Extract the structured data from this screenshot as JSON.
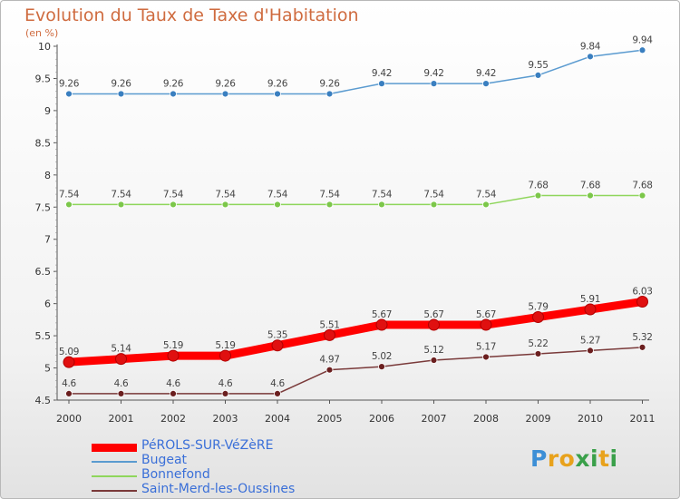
{
  "title": "Evolution du Taux de Taxe d'Habitation",
  "unit_label": "(en %)",
  "logo_text": "Proxiti",
  "chart_data": {
    "type": "line",
    "title": "Evolution du Taux de Taxe d'Habitation",
    "ylabel": "(en %)",
    "xlabel": "",
    "categories": [
      "2000",
      "2001",
      "2002",
      "2003",
      "2004",
      "2005",
      "2006",
      "2007",
      "2008",
      "2009",
      "2010",
      "2011"
    ],
    "ylim": [
      4.5,
      10
    ],
    "yticks": [
      4.5,
      5,
      5.5,
      6,
      6.5,
      7,
      7.5,
      8,
      8.5,
      9,
      9.5,
      10
    ],
    "ytick_labels": [
      "4.5",
      "5",
      "5.5",
      "6",
      "6.5",
      "7",
      "7.5",
      "8",
      "8.5",
      "9",
      "9.5",
      "10"
    ],
    "legend_position": "bottom-left",
    "series": [
      {
        "name": "PéROLS-SUR-VéZèRE",
        "color": "#ff0000",
        "marker": "#e01010",
        "width": 9,
        "values": [
          5.09,
          5.14,
          5.19,
          5.19,
          5.35,
          5.51,
          5.67,
          5.67,
          5.67,
          5.79,
          5.91,
          6.03
        ],
        "labels": [
          "5.09",
          "5.14",
          "5.19",
          "5.19",
          "5.35",
          "5.51",
          "5.67",
          "5.67",
          "5.67",
          "5.79",
          "5.91",
          "6.03"
        ]
      },
      {
        "name": "Bugeat",
        "color": "#5b9bd0",
        "marker": "#3a7fc0",
        "width": 1.5,
        "values": [
          9.26,
          9.26,
          9.26,
          9.26,
          9.26,
          9.26,
          9.42,
          9.42,
          9.42,
          9.55,
          9.84,
          9.94
        ],
        "labels": [
          "9.26",
          "9.26",
          "9.26",
          "9.26",
          "9.26",
          "9.26",
          "9.42",
          "9.42",
          "9.42",
          "9.55",
          "9.84",
          "9.94"
        ]
      },
      {
        "name": "Bonnefond",
        "color": "#8fd65c",
        "marker": "#7cc74a",
        "width": 1.5,
        "values": [
          7.54,
          7.54,
          7.54,
          7.54,
          7.54,
          7.54,
          7.54,
          7.54,
          7.54,
          7.68,
          7.68,
          7.68
        ],
        "labels": [
          "7.54",
          "7.54",
          "7.54",
          "7.54",
          "7.54",
          "7.54",
          "7.54",
          "7.54",
          "7.54",
          "7.68",
          "7.68",
          "7.68"
        ]
      },
      {
        "name": "Saint-Merd-les-Oussines",
        "color": "#7a3a3a",
        "marker": "#6b1f1f",
        "width": 1.5,
        "values": [
          4.6,
          4.6,
          4.6,
          4.6,
          4.6,
          4.97,
          5.02,
          5.12,
          5.17,
          5.22,
          5.27,
          5.32
        ],
        "labels": [
          "4.6",
          "4.6",
          "4.6",
          "4.6",
          "4.6",
          "4.97",
          "5.02",
          "5.12",
          "5.17",
          "5.22",
          "5.27",
          "5.32"
        ]
      }
    ]
  }
}
